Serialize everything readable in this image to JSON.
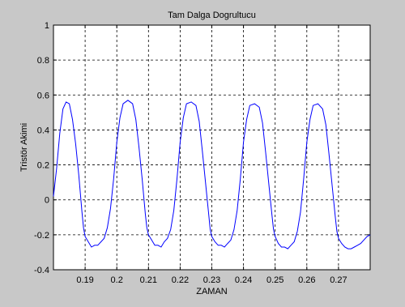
{
  "chart_data": {
    "type": "line",
    "title": "Tam Dalga Dogrultucu",
    "xlabel": "ZAMAN",
    "ylabel": "Tristör Akimi",
    "xlim": [
      0.18,
      0.28
    ],
    "ylim": [
      -0.4,
      1.0
    ],
    "grid": true,
    "x_ticks": [
      0.19,
      0.2,
      0.21,
      0.22,
      0.23,
      0.24,
      0.25,
      0.26,
      0.27
    ],
    "x_tick_labels": [
      "0.19",
      "0.2",
      "0.21",
      "0.22",
      "0.23",
      "0.24",
      "0.25",
      "0.26",
      "0.27"
    ],
    "y_ticks": [
      -0.4,
      -0.2,
      0,
      0.2,
      0.4,
      0.6,
      0.8,
      1.0
    ],
    "y_tick_labels": [
      "-0.4",
      "-0.2",
      "0",
      "0.2",
      "0.4",
      "0.6",
      "0.8",
      "1"
    ],
    "colors": {
      "figure_bg": "#c8c8c8",
      "plot_bg": "#ffffff",
      "series": "#0000ff"
    },
    "series": [
      {
        "values": [
          [
            0.18,
            0.02
          ],
          [
            0.181,
            0.18
          ],
          [
            0.182,
            0.38
          ],
          [
            0.183,
            0.52
          ],
          [
            0.184,
            0.56
          ],
          [
            0.185,
            0.55
          ],
          [
            0.186,
            0.46
          ],
          [
            0.187,
            0.32
          ],
          [
            0.188,
            0.14
          ],
          [
            0.189,
            -0.07
          ],
          [
            0.1895,
            -0.16
          ],
          [
            0.19,
            -0.21
          ],
          [
            0.191,
            -0.24
          ],
          [
            0.192,
            -0.27
          ],
          [
            0.193,
            -0.26
          ],
          [
            0.194,
            -0.26
          ],
          [
            0.195,
            -0.24
          ],
          [
            0.196,
            -0.22
          ],
          [
            0.197,
            -0.16
          ],
          [
            0.198,
            -0.05
          ],
          [
            0.199,
            0.12
          ],
          [
            0.2,
            0.33
          ],
          [
            0.201,
            0.47
          ],
          [
            0.202,
            0.55
          ],
          [
            0.2035,
            0.57
          ],
          [
            0.205,
            0.55
          ],
          [
            0.206,
            0.46
          ],
          [
            0.207,
            0.3
          ],
          [
            0.208,
            0.12
          ],
          [
            0.209,
            -0.08
          ],
          [
            0.2095,
            -0.16
          ],
          [
            0.21,
            -0.2
          ],
          [
            0.211,
            -0.23
          ],
          [
            0.212,
            -0.26
          ],
          [
            0.213,
            -0.26
          ],
          [
            0.214,
            -0.27
          ],
          [
            0.215,
            -0.24
          ],
          [
            0.216,
            -0.22
          ],
          [
            0.217,
            -0.17
          ],
          [
            0.218,
            -0.06
          ],
          [
            0.219,
            0.12
          ],
          [
            0.22,
            0.33
          ],
          [
            0.221,
            0.47
          ],
          [
            0.222,
            0.55
          ],
          [
            0.2235,
            0.56
          ],
          [
            0.225,
            0.54
          ],
          [
            0.226,
            0.45
          ],
          [
            0.227,
            0.28
          ],
          [
            0.228,
            0.1
          ],
          [
            0.229,
            -0.08
          ],
          [
            0.2295,
            -0.17
          ],
          [
            0.23,
            -0.21
          ],
          [
            0.231,
            -0.24
          ],
          [
            0.232,
            -0.26
          ],
          [
            0.233,
            -0.26
          ],
          [
            0.234,
            -0.27
          ],
          [
            0.235,
            -0.25
          ],
          [
            0.236,
            -0.23
          ],
          [
            0.237,
            -0.17
          ],
          [
            0.238,
            -0.06
          ],
          [
            0.239,
            0.12
          ],
          [
            0.24,
            0.33
          ],
          [
            0.241,
            0.46
          ],
          [
            0.242,
            0.54
          ],
          [
            0.2435,
            0.55
          ],
          [
            0.245,
            0.53
          ],
          [
            0.246,
            0.44
          ],
          [
            0.247,
            0.27
          ],
          [
            0.248,
            0.09
          ],
          [
            0.249,
            -0.09
          ],
          [
            0.2495,
            -0.17
          ],
          [
            0.25,
            -0.21
          ],
          [
            0.251,
            -0.25
          ],
          [
            0.252,
            -0.27
          ],
          [
            0.253,
            -0.27
          ],
          [
            0.254,
            -0.28
          ],
          [
            0.255,
            -0.26
          ],
          [
            0.256,
            -0.24
          ],
          [
            0.257,
            -0.18
          ],
          [
            0.258,
            -0.07
          ],
          [
            0.259,
            0.12
          ],
          [
            0.26,
            0.33
          ],
          [
            0.261,
            0.46
          ],
          [
            0.262,
            0.54
          ],
          [
            0.2635,
            0.55
          ],
          [
            0.265,
            0.52
          ],
          [
            0.266,
            0.43
          ],
          [
            0.267,
            0.26
          ],
          [
            0.268,
            0.08
          ],
          [
            0.269,
            -0.1
          ],
          [
            0.2695,
            -0.18
          ],
          [
            0.27,
            -0.22
          ],
          [
            0.271,
            -0.25
          ],
          [
            0.272,
            -0.27
          ],
          [
            0.273,
            -0.28
          ],
          [
            0.274,
            -0.28
          ],
          [
            0.275,
            -0.27
          ],
          [
            0.276,
            -0.26
          ],
          [
            0.277,
            -0.25
          ],
          [
            0.278,
            -0.23
          ],
          [
            0.279,
            -0.21
          ],
          [
            0.28,
            -0.2
          ]
        ]
      }
    ]
  }
}
